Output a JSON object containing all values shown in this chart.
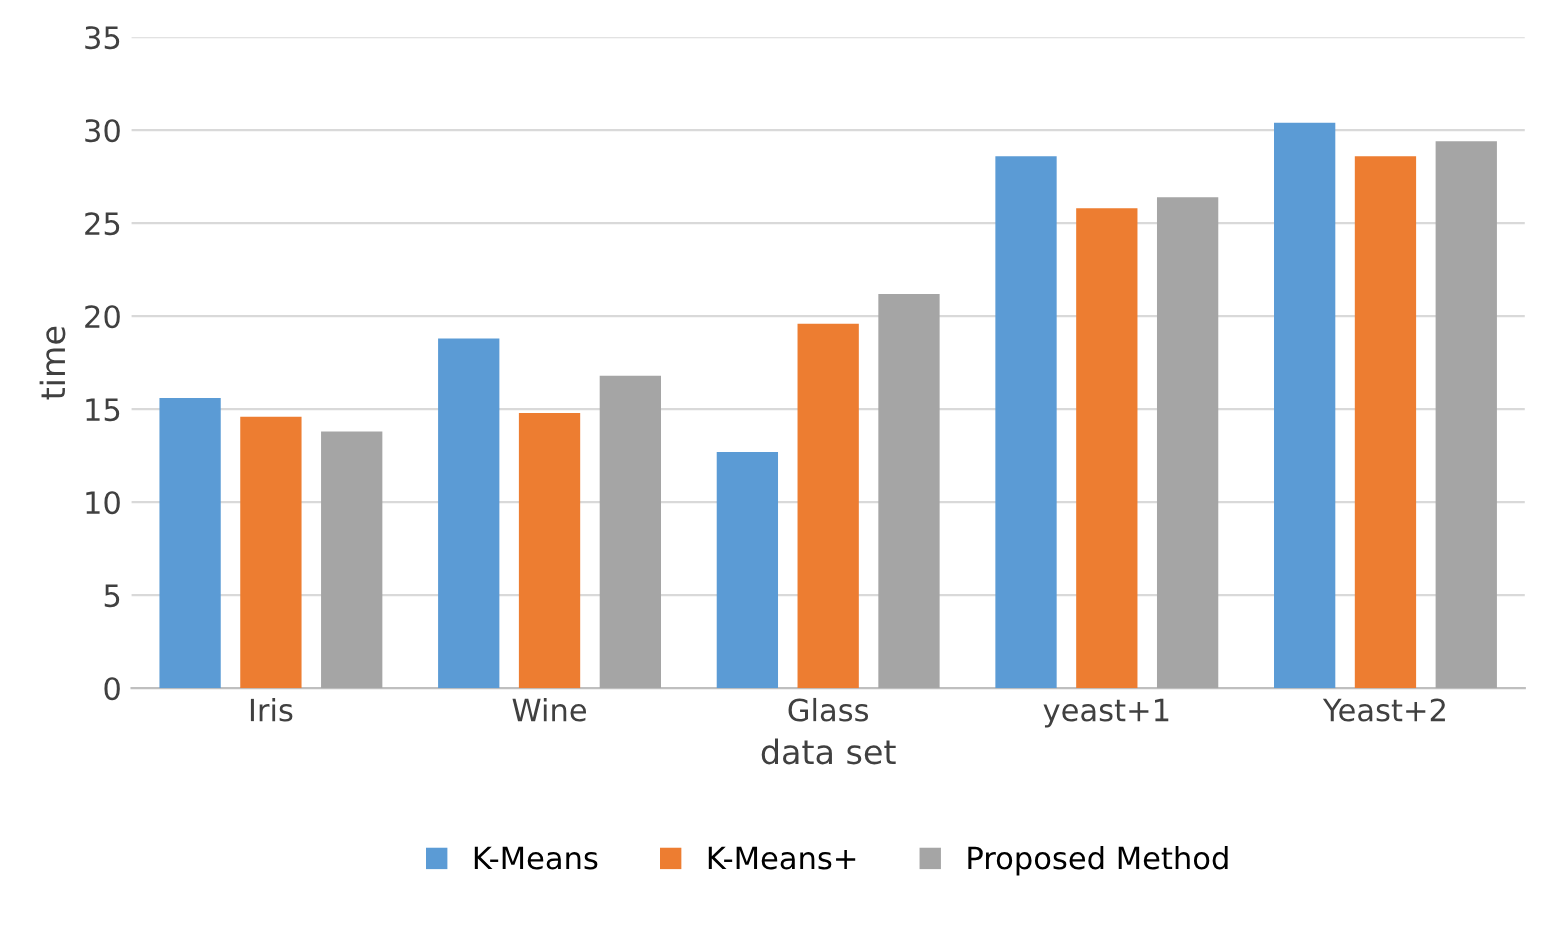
{
  "chart_data": {
    "type": "bar",
    "xlabel": "data set",
    "ylabel": "time",
    "categories": [
      "Iris",
      "Wine",
      "Glass",
      "yeast+1",
      "Yeast+2"
    ],
    "series": [
      {
        "name": "K-Means",
        "color": "#5b9bd5",
        "values": [
          15.6,
          18.8,
          12.7,
          28.6,
          30.4
        ]
      },
      {
        "name": "K-Means+",
        "color": "#ed7d31",
        "values": [
          14.6,
          14.8,
          19.6,
          25.8,
          28.6
        ]
      },
      {
        "name": "Proposed Method",
        "color": "#a5a5a5",
        "values": [
          13.8,
          16.8,
          21.2,
          26.4,
          29.4
        ]
      }
    ],
    "ylim": [
      0,
      35
    ],
    "yticks": [
      0,
      5,
      10,
      15,
      20,
      25,
      30,
      35
    ],
    "grid": "y",
    "legend": "bottom"
  }
}
